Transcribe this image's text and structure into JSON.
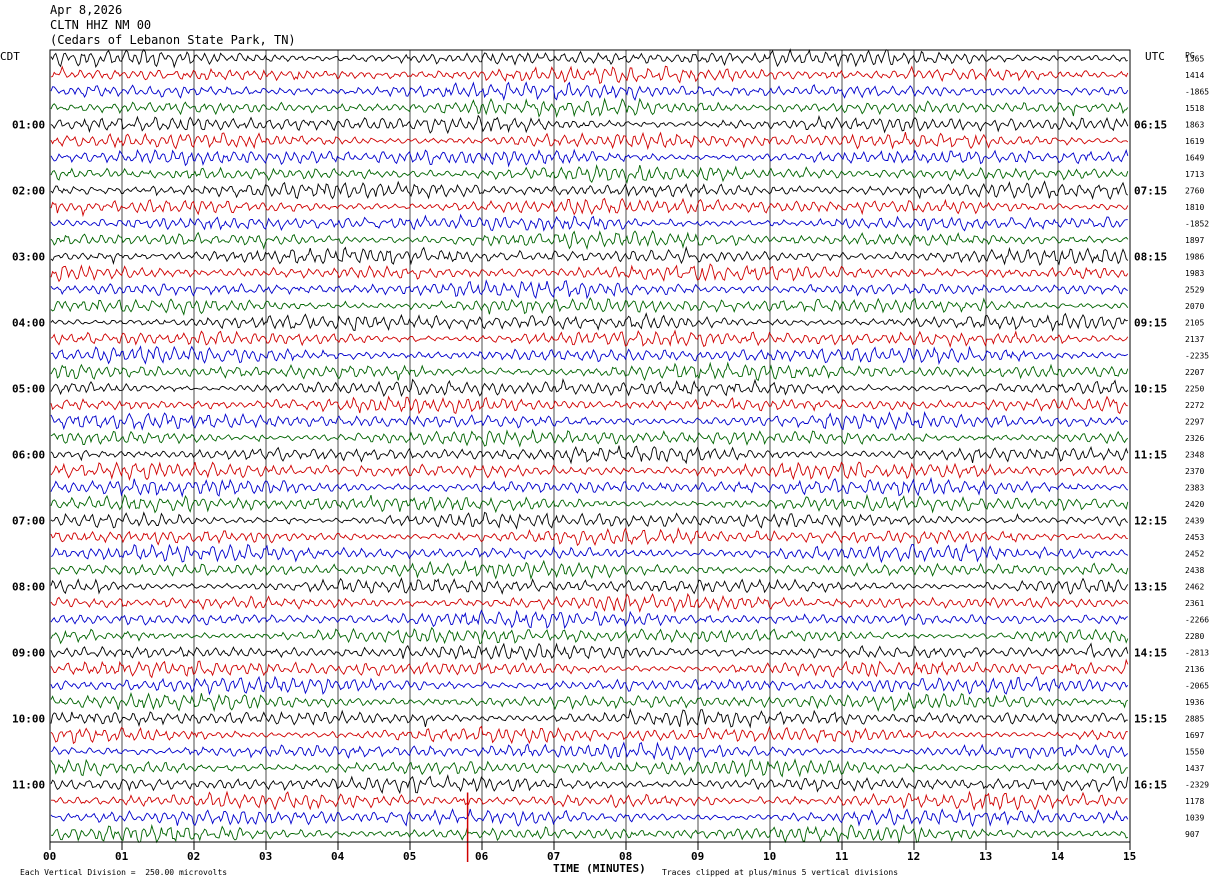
{
  "header": {
    "date": "Apr 8,2026",
    "station": "CLTN HHZ NM 00",
    "location": "(Cedars of Lebanon State Park, TN)"
  },
  "axes": {
    "left_tz": "CDT",
    "right_tz": "UTC",
    "right_col_tag": "PG"
  },
  "footer": {
    "scale_note": "Each Vertical Division =  250.00 microvolts",
    "clip_note": "Traces clipped at plus/minus 5 vertical divisions"
  },
  "chart_data": {
    "type": "line",
    "title": "",
    "xlabel": "TIME (MINUTES)",
    "ylabel": "",
    "xlim": [
      0,
      15
    ],
    "x_ticks": [
      "00",
      "01",
      "02",
      "03",
      "04",
      "05",
      "06",
      "07",
      "08",
      "09",
      "10",
      "11",
      "12",
      "13",
      "14",
      "15"
    ],
    "left_hour_labels": [
      "01:00",
      "02:00",
      "03:00",
      "04:00",
      "05:00",
      "06:00",
      "07:00",
      "08:00",
      "09:00",
      "10:00",
      "11:00"
    ],
    "right_hour_labels": [
      "06:15",
      "07:15",
      "08:15",
      "09:15",
      "10:15",
      "11:15",
      "12:15",
      "13:15",
      "14:15",
      "15:15",
      "16:15"
    ],
    "row_minutes": 15,
    "rows": 48,
    "row_color_cycle": [
      "#000000",
      "#d00000",
      "#0000cc",
      "#006400"
    ],
    "right_values": [
      "1365",
      "1414",
      "-1865",
      "1518",
      "1863",
      "1619",
      "1649",
      "1713",
      "2760",
      "1810",
      "-1852",
      "1897",
      "1986",
      "1983",
      "2529",
      "2070",
      "2105",
      "2137",
      "-2235",
      "2207",
      "2250",
      "2272",
      "2297",
      "2326",
      "2348",
      "2370",
      "2383",
      "2420",
      "2439",
      "2453",
      "2452",
      "2438",
      "2462",
      "2361",
      "-2266",
      "2280",
      "-2813",
      "2136",
      "-2065",
      "1936",
      "2885",
      "1697",
      "1550",
      "1437",
      "-2329",
      "1178",
      "1039",
      "907"
    ],
    "event_marker_minute": 5.8,
    "event_marker_color": "#d00000"
  }
}
